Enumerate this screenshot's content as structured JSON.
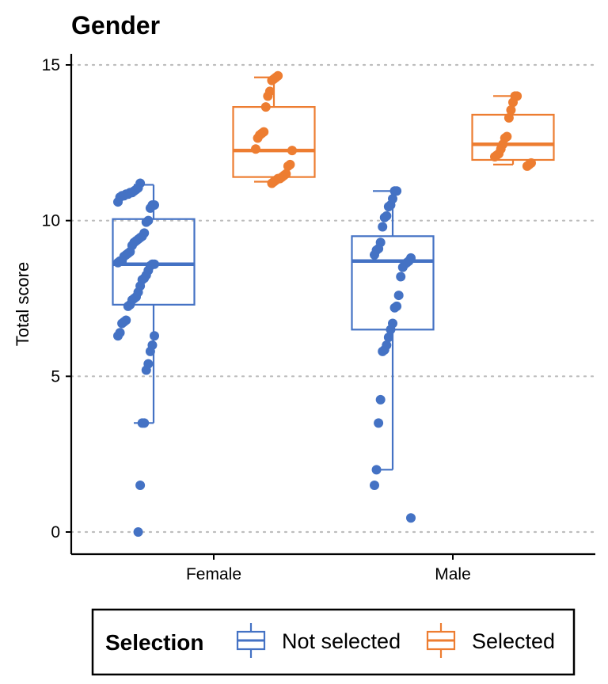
{
  "chart_data": {
    "type": "box",
    "title": "Gender",
    "xlabel": "",
    "ylabel": "Total score",
    "ylim": [
      -0.7,
      15.2
    ],
    "yticks": [
      0,
      5,
      10,
      15
    ],
    "grid": "horizontal-dotted",
    "legend_position": "bottom",
    "legend_title": "Selection",
    "categories": [
      "Female",
      "Male"
    ],
    "series": [
      {
        "name": "Not selected",
        "color": "#4472C4",
        "boxes": [
          {
            "category": "Female",
            "min": 3.5,
            "q1": 7.3,
            "median": 8.6,
            "q3": 10.05,
            "max": 11.15
          },
          {
            "category": "Male",
            "min": 2.0,
            "q1": 6.5,
            "median": 8.7,
            "q3": 9.5,
            "max": 10.95
          }
        ],
        "points": {
          "Female": [
            11.2,
            11.05,
            11.0,
            10.95,
            10.9,
            10.9,
            10.85,
            10.85,
            10.8,
            10.8,
            10.75,
            10.6,
            10.5,
            10.5,
            10.4,
            10.0,
            9.95,
            9.6,
            9.5,
            9.45,
            9.4,
            9.35,
            9.3,
            9.2,
            9.0,
            8.95,
            8.9,
            8.85,
            8.7,
            8.7,
            8.65,
            8.6,
            8.6,
            8.55,
            8.4,
            8.25,
            8.15,
            8.1,
            7.9,
            7.7,
            7.55,
            7.5,
            7.45,
            7.3,
            7.25,
            6.8,
            6.75,
            6.7,
            6.4,
            6.3,
            6.3,
            6.0,
            5.8,
            5.4,
            5.2,
            3.5,
            3.5,
            1.5,
            0.0
          ],
          "Male": [
            10.95,
            10.95,
            10.7,
            10.5,
            10.45,
            10.15,
            10.1,
            9.8,
            9.3,
            9.1,
            9.05,
            8.9,
            8.8,
            8.7,
            8.65,
            8.6,
            8.5,
            8.2,
            7.6,
            7.25,
            7.2,
            6.7,
            6.5,
            6.25,
            6.0,
            5.85,
            5.8,
            4.25,
            3.5,
            2.0,
            1.5,
            0.45
          ]
        }
      },
      {
        "name": "Selected",
        "color": "#ED7D31",
        "boxes": [
          {
            "category": "Female",
            "min": 11.25,
            "q1": 11.4,
            "median": 12.25,
            "q3": 13.65,
            "max": 14.6
          },
          {
            "category": "Male",
            "min": 11.8,
            "q1": 11.95,
            "median": 12.45,
            "q3": 13.4,
            "max": 14.0
          }
        ],
        "points": {
          "Female": [
            14.65,
            14.6,
            14.55,
            14.5,
            14.15,
            14.0,
            13.65,
            12.85,
            12.8,
            12.75,
            12.65,
            12.3,
            12.25,
            11.8,
            11.75,
            11.5,
            11.45,
            11.4,
            11.35,
            11.35,
            11.3,
            11.25,
            11.2
          ],
          "Male": [
            14.0,
            14.0,
            13.8,
            13.55,
            13.3,
            12.7,
            12.65,
            12.45,
            12.3,
            12.15,
            12.1,
            12.05,
            11.85,
            11.8,
            11.75
          ]
        }
      }
    ]
  }
}
